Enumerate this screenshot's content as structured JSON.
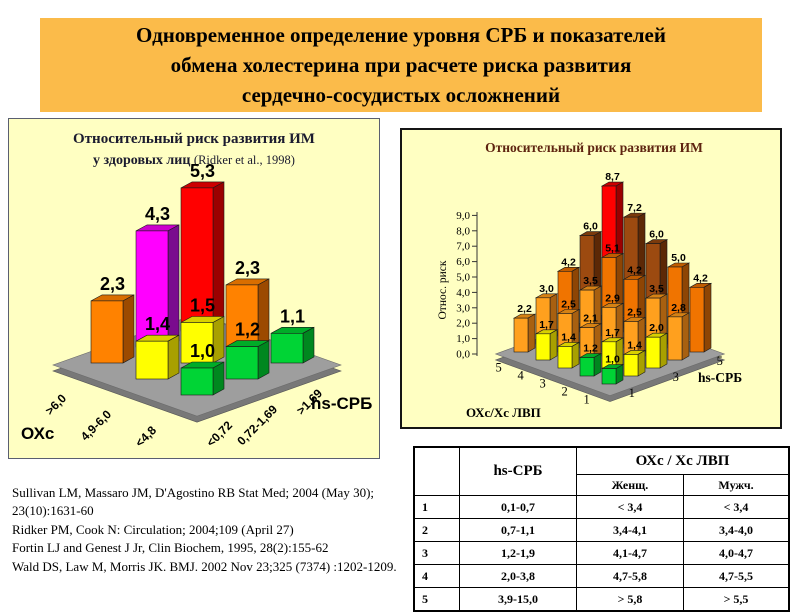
{
  "slide": {
    "title": "Одновременное определение уровня СРБ и показателей обмена холестерина при расчете риска развития сердечно-сосудистых осложнений",
    "title_lines": [
      "Одновременное определение уровня СРБ и показателей",
      "обмена холестерина при расчете риска развития",
      "сердечно-сосудистых осложнений"
    ]
  },
  "colors": {
    "banner_bg": "#FBBB4A",
    "chart_bg": "#FFFFC2",
    "floor": "#9E9E9E",
    "floor_edge": "#787878",
    "left_title_color": "#1B1B2F",
    "right_title_color": "#5E2410",
    "bars": {
      "orange": {
        "front": "#FF8200",
        "side": "#9C4A00",
        "top": "#D96E00"
      },
      "magenta": {
        "front": "#FF00FF",
        "side": "#7A0B8E",
        "top": "#CC00CC"
      },
      "red": {
        "front": "#FF0000",
        "side": "#9B0000",
        "top": "#CC0000"
      },
      "yellow": {
        "front": "#FFFF00",
        "side": "#A8A000",
        "top": "#D9D000"
      },
      "green": {
        "front": "#00D435",
        "side": "#00871F",
        "top": "#00AC28"
      },
      "brown": {
        "front": "#9C4A10",
        "side": "#5C2806",
        "top": "#7B3A0C"
      },
      "dkorange": {
        "front": "#F07400",
        "side": "#8E4504",
        "top": "#C05C00"
      },
      "ltorange": {
        "front": "#FFA01E",
        "side": "#A86010",
        "top": "#D58114"
      }
    }
  },
  "chart_data": [
    {
      "type": "bar3d",
      "title": "Относительный риск развития ИМ",
      "subtitle": "у здоровых лиц",
      "subtitle_note": "(Ridker et al., 1998)",
      "x_axis": {
        "name": "ОХс",
        "categories": [
          ">6,0",
          "4,9-6,0",
          "<4,8"
        ]
      },
      "z_axis": {
        "name": "hs-СРБ",
        "categories": [
          "<0,72",
          "0,72-1,69",
          ">1,69"
        ]
      },
      "rows": [
        {
          "oxc": ">6,0",
          "values": [
            2.3,
            4.3,
            5.3
          ]
        },
        {
          "oxc": "4,9-6,0",
          "values": [
            1.4,
            1.5,
            2.3
          ]
        },
        {
          "oxc": "<4,8",
          "values": [
            1.0,
            1.2,
            1.1
          ]
        }
      ],
      "bar_colors": [
        [
          "orange",
          "magenta",
          "red"
        ],
        [
          "yellow",
          "yellow",
          "orange"
        ],
        [
          "green",
          "green",
          "green"
        ]
      ]
    },
    {
      "type": "bar3d",
      "title": "Относительный риск развития ИМ",
      "y_axis": {
        "name": "Относ. риск",
        "min": 0,
        "max": 9,
        "step": 1,
        "tick_labels": [
          "0,0",
          "1,0",
          "2,0",
          "3,0",
          "4,0",
          "5,0",
          "6,0",
          "7,0",
          "8,0",
          "9,0"
        ]
      },
      "x_axis": {
        "name": "ОХс/Хс ЛВП",
        "categories": [
          "5",
          "4",
          "3",
          "2",
          "1"
        ]
      },
      "z_axis": {
        "name": "hs-СРБ",
        "tick_labels": [
          "1",
          "3",
          "5"
        ]
      },
      "rows": [
        {
          "ratio_quintile": "5",
          "values": [
            2.2,
            3.0,
            4.2,
            6.0,
            8.7
          ]
        },
        {
          "ratio_quintile": "4",
          "values": [
            1.7,
            2.5,
            3.5,
            5.1,
            7.2
          ]
        },
        {
          "ratio_quintile": "3",
          "values": [
            1.4,
            2.1,
            2.9,
            4.2,
            6.0
          ]
        },
        {
          "ratio_quintile": "2",
          "values": [
            1.2,
            1.7,
            2.5,
            3.5,
            5.0
          ]
        },
        {
          "ratio_quintile": "1",
          "values": [
            1.0,
            1.4,
            2.0,
            2.8,
            4.2
          ]
        }
      ],
      "color_bands": [
        {
          "min": 8.0,
          "color": "red"
        },
        {
          "min": 5.6,
          "color": "brown"
        },
        {
          "min": 4.0,
          "color": "dkorange"
        },
        {
          "min": 2.05,
          "color": "ltorange"
        },
        {
          "min": 1.3,
          "color": "yellow"
        },
        {
          "min": 0.0,
          "color": "green"
        }
      ]
    }
  ],
  "table": {
    "col1_header": "hs-СРБ",
    "group_header": "ОХс / Хс ЛВП",
    "sub_headers": [
      "Женщ.",
      "Мужч."
    ],
    "rows": [
      {
        "n": "1",
        "hs_crp": "0,1-0,7",
        "women": "< 3,4",
        "men": "< 3,4"
      },
      {
        "n": "2",
        "hs_crp": "0,7-1,1",
        "women": "3,4-4,1",
        "men": "3,4-4,0"
      },
      {
        "n": "3",
        "hs_crp": "1,2-1,9",
        "women": "4,1-4,7",
        "men": "4,0-4,7"
      },
      {
        "n": "4",
        "hs_crp": "2,0-3,8",
        "women": "4,7-5,8",
        "men": "4,7-5,5"
      },
      {
        "n": "5",
        "hs_crp": "3,9-15,0",
        "women": "> 5,8",
        "men": "> 5,5"
      }
    ]
  },
  "references": [
    "Sullivan LM, Massaro JM, D'Agostino RB  Stat Med; 2004 (May 30); 23(10):1631-60",
    "Ridker PM, Cook N: Circulation; 2004;109 (April 27)",
    "Fortin LJ and Genest J Jr, Clin Biochem, 1995, 28(2):155-62",
    "Wald DS, Law M, Morris JK. BMJ. 2002 Nov 23;325 (7374) :1202-1209."
  ]
}
